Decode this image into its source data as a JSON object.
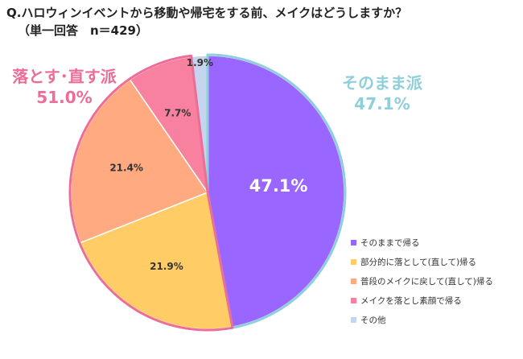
{
  "title": "Q.ハロウィンイベントから移動や帰宅をする前、メイクはどうしますか？",
  "subtitle": "（単一回答　n＝429）",
  "groups": {
    "left": {
      "label": "落とす･直す派",
      "value": "51.0%",
      "color": "#ec6d97"
    },
    "right": {
      "label": "そのまま派",
      "value": "47.1%",
      "color": "#8ecfdc"
    }
  },
  "chart_data": {
    "type": "pie",
    "title": "Q.ハロウィンイベントから移動や帰宅をする前、メイクはどうしますか？",
    "legend_position": "bottom-right",
    "slices": [
      {
        "name": "そのままで帰る",
        "value": 47.1,
        "label": "47.1%",
        "color": "#9966ff"
      },
      {
        "name": "部分的に落として(直して)帰る",
        "value": 21.9,
        "label": "21.9%",
        "color": "#ffcc66"
      },
      {
        "name": "普段のメイクに戻して(直して)帰る",
        "value": 21.4,
        "label": "21.4%",
        "color": "#ffaa80"
      },
      {
        "name": "メイクを落とし素顔で帰る",
        "value": 7.7,
        "label": "7.7%",
        "color": "#f7819f"
      },
      {
        "name": "その他",
        "value": 1.9,
        "label": "1.9%",
        "color": "#c6d4ef"
      }
    ]
  }
}
